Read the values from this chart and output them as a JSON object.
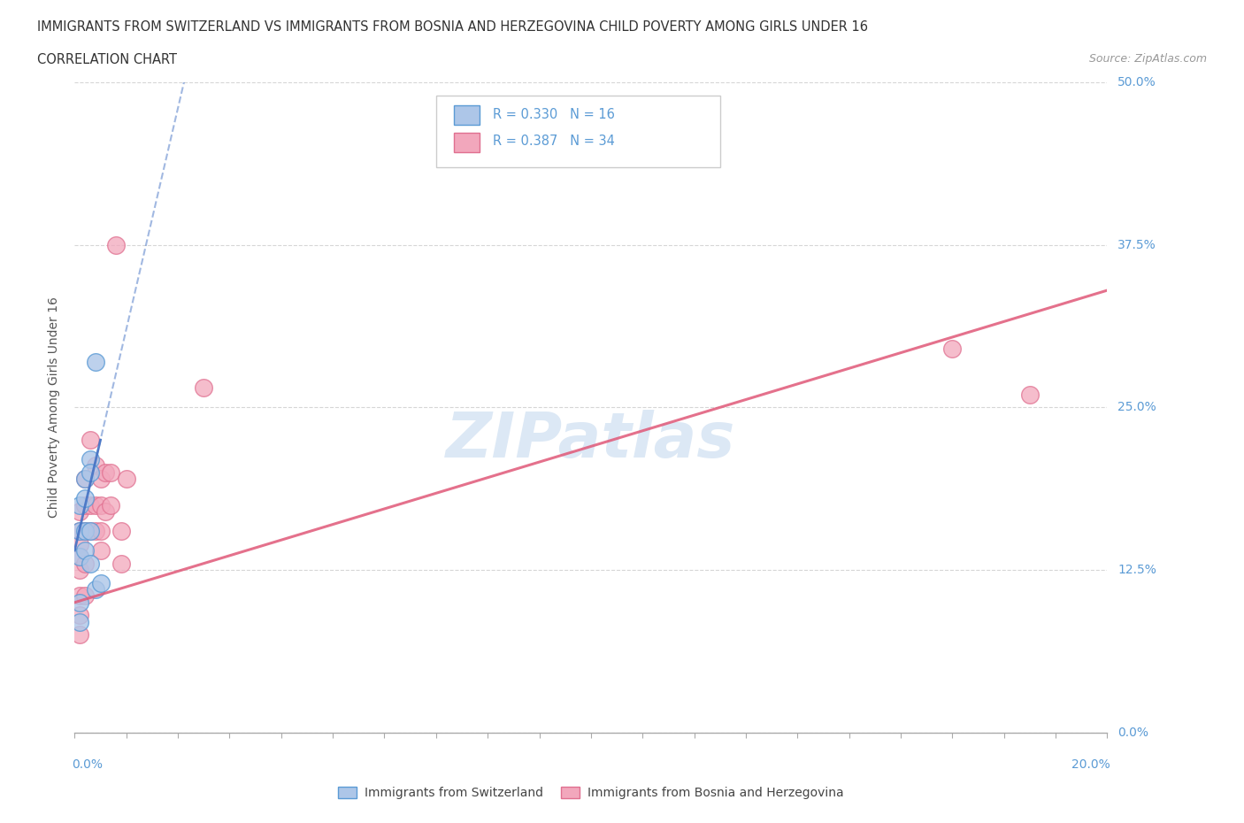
{
  "title_line1": "IMMIGRANTS FROM SWITZERLAND VS IMMIGRANTS FROM BOSNIA AND HERZEGOVINA CHILD POVERTY AMONG GIRLS UNDER 16",
  "title_line2": "CORRELATION CHART",
  "source_text": "Source: ZipAtlas.com",
  "ylabel": "Child Poverty Among Girls Under 16",
  "xlim": [
    0.0,
    0.2
  ],
  "ylim": [
    0.0,
    0.5
  ],
  "yticks": [
    0.0,
    0.125,
    0.25,
    0.375,
    0.5
  ],
  "ytick_labels": [
    "0.0%",
    "12.5%",
    "25.0%",
    "37.5%",
    "50.0%"
  ],
  "xtick_labels_ends": [
    "0.0%",
    "20.0%"
  ],
  "legend_label1": "Immigrants from Switzerland",
  "legend_label2": "Immigrants from Bosnia and Herzegovina",
  "color_swiss": "#adc6e8",
  "color_bosnia": "#f2a7bc",
  "color_swiss_edge": "#5b9bd5",
  "color_bosnia_edge": "#e07090",
  "color_swiss_line": "#4472c4",
  "color_bosnia_line": "#e05878",
  "color_axis_text": "#5b9bd5",
  "watermark_color": "#dce8f5",
  "swiss_x": [
    0.001,
    0.001,
    0.001,
    0.001,
    0.001,
    0.002,
    0.002,
    0.002,
    0.002,
    0.003,
    0.003,
    0.003,
    0.003,
    0.004,
    0.004,
    0.005
  ],
  "swiss_y": [
    0.155,
    0.175,
    0.135,
    0.1,
    0.085,
    0.195,
    0.18,
    0.155,
    0.14,
    0.21,
    0.2,
    0.155,
    0.13,
    0.285,
    0.11,
    0.115
  ],
  "bosnia_x": [
    0.001,
    0.001,
    0.001,
    0.001,
    0.001,
    0.001,
    0.001,
    0.001,
    0.002,
    0.002,
    0.002,
    0.002,
    0.002,
    0.003,
    0.003,
    0.003,
    0.004,
    0.004,
    0.004,
    0.005,
    0.005,
    0.005,
    0.005,
    0.006,
    0.006,
    0.007,
    0.007,
    0.008,
    0.009,
    0.009,
    0.01,
    0.025,
    0.17,
    0.185
  ],
  "bosnia_y": [
    0.17,
    0.155,
    0.145,
    0.135,
    0.125,
    0.105,
    0.09,
    0.075,
    0.195,
    0.175,
    0.155,
    0.13,
    0.105,
    0.225,
    0.175,
    0.155,
    0.205,
    0.175,
    0.155,
    0.195,
    0.175,
    0.155,
    0.14,
    0.2,
    0.17,
    0.2,
    0.175,
    0.375,
    0.155,
    0.13,
    0.195,
    0.265,
    0.295,
    0.26
  ],
  "swiss_trend_x": [
    0.0,
    0.005
  ],
  "swiss_trend_y": [
    0.14,
    0.225
  ],
  "bosnia_trend_x": [
    0.0,
    0.2
  ],
  "bosnia_trend_y": [
    0.1,
    0.34
  ]
}
